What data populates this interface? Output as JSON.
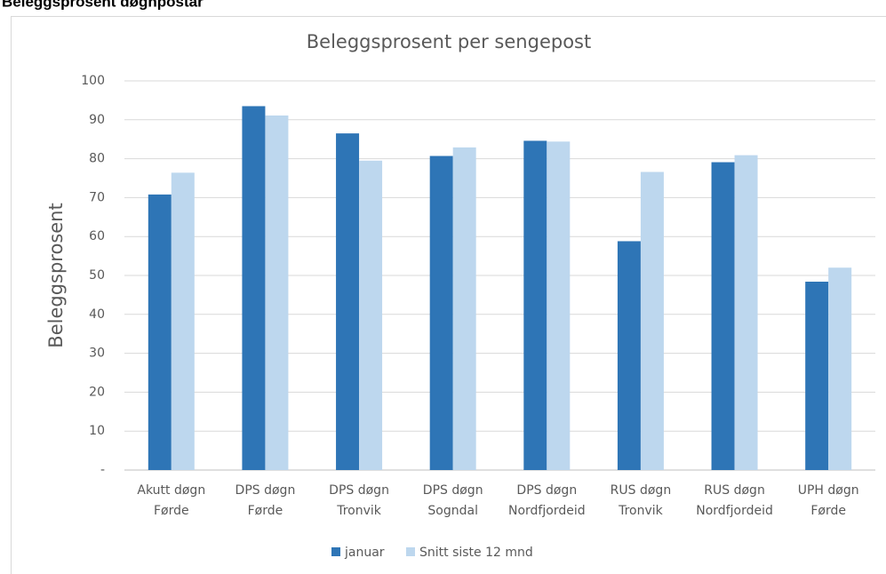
{
  "heading": "Beleggsprosent døgnpostar",
  "chart_data": {
    "type": "bar",
    "title": "Beleggsprosent per sengepost",
    "y_label": "Beleggsprosent",
    "categories": [
      [
        "Akutt døgn",
        "Førde"
      ],
      [
        "DPS døgn",
        "Førde"
      ],
      [
        "DPS døgn",
        "Tronvik"
      ],
      [
        "DPS døgn",
        "Sogndal"
      ],
      [
        "DPS døgn",
        "Nordfjordeid"
      ],
      [
        "RUS døgn",
        "Tronvik"
      ],
      [
        "RUS døgn",
        "Nordfjordeid"
      ],
      [
        "UPH døgn",
        "Førde"
      ]
    ],
    "series": [
      {
        "name": "januar",
        "color": "#2e75b6",
        "values": [
          70.8,
          93.5,
          86.5,
          80.7,
          84.6,
          58.8,
          79.1,
          48.4
        ]
      },
      {
        "name": "Snitt siste 12 mnd",
        "color": "#bdd7ee",
        "values": [
          76.4,
          91.1,
          79.5,
          82.9,
          84.4,
          76.6,
          80.9,
          52.0
        ]
      }
    ],
    "ylim": [
      0,
      100
    ],
    "yticks": [
      {
        "value": 0,
        "label": "-"
      },
      10,
      20,
      30,
      40,
      50,
      60,
      70,
      80,
      90,
      100
    ],
    "grid": true,
    "legend": "bottom"
  }
}
